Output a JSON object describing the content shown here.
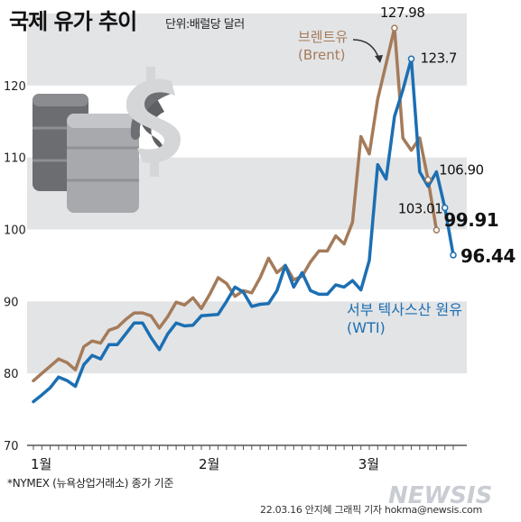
{
  "header": {
    "title": "국제 유가 추이",
    "unit": "단위:배럴당 달러"
  },
  "footer": {
    "note": "*NYMEX (뉴욕상업거래소) 종가 기준",
    "credit": "22.03.16 안지혜 그래픽 기자  hokma@newsis.com",
    "watermark": "NEWSIS"
  },
  "colors": {
    "brent": "#a47b5a",
    "wti": "#1c6fb3",
    "band": "#e3e4e6"
  },
  "icons": [
    "oil-barrel-icon",
    "dollar-sign-icon"
  ],
  "chart_data": {
    "type": "line",
    "title": "국제 유가 추이",
    "ylabel": "단위:배럴당 달러",
    "ylim": [
      70,
      130
    ],
    "yticks": [
      70,
      80,
      90,
      100,
      110,
      120
    ],
    "grid": "alternating horizontal bands",
    "x_tick_labels": [
      {
        "label": "1월",
        "index": 0
      },
      {
        "label": "2월",
        "index": 20
      },
      {
        "label": "3월",
        "index": 39
      }
    ],
    "series": [
      {
        "name": "브렌트유 (Brent)",
        "values": [
          78.98,
          80.0,
          81.0,
          82.0,
          81.5,
          80.5,
          83.7,
          84.5,
          84.2,
          86.0,
          86.4,
          87.5,
          88.4,
          88.4,
          88.0,
          86.3,
          87.9,
          89.9,
          89.5,
          90.5,
          89.0,
          91.0,
          93.3,
          92.5,
          90.7,
          91.5,
          91.2,
          93.3,
          96.0,
          94.0,
          95.0,
          93.0,
          93.5,
          95.5,
          97.0,
          97.0,
          99.1,
          98.0,
          101.0,
          112.9,
          110.5,
          118.1,
          123.0,
          127.98,
          112.7,
          111.0,
          112.7,
          106.9,
          99.91
        ],
        "labels": [
          {
            "index": 43,
            "text": "127.98"
          },
          {
            "index": 47,
            "text": "106.90"
          },
          {
            "index": 48,
            "text": "99.91"
          }
        ]
      },
      {
        "name": "서부 텍사스산 원유 (WTI)",
        "values": [
          76.08,
          77.0,
          78.0,
          79.5,
          79.0,
          78.2,
          81.2,
          82.5,
          82.0,
          84.0,
          84.0,
          85.5,
          87.0,
          87.0,
          85.0,
          83.3,
          85.5,
          87.0,
          86.6,
          86.7,
          88.0,
          88.1,
          88.2,
          90.0,
          92.0,
          91.3,
          89.3,
          89.6,
          89.7,
          91.5,
          95.0,
          92.0,
          94.0,
          91.5,
          91.0,
          91.0,
          92.3,
          92.0,
          92.9,
          91.6,
          95.7,
          109.0,
          107.0,
          115.7,
          119.4,
          123.7,
          108.0,
          106.0,
          108.0,
          103.01,
          96.44
        ],
        "labels": [
          {
            "index": 45,
            "text": "123.7"
          },
          {
            "index": 49,
            "text": "103.01"
          },
          {
            "index": 50,
            "text": "96.44"
          }
        ]
      }
    ]
  },
  "legend": {
    "brent_line1": "브렌트유",
    "brent_line2": "(Brent)",
    "wti_line1": "서부 텍사스산 원유",
    "wti_line2": "(WTI)"
  }
}
